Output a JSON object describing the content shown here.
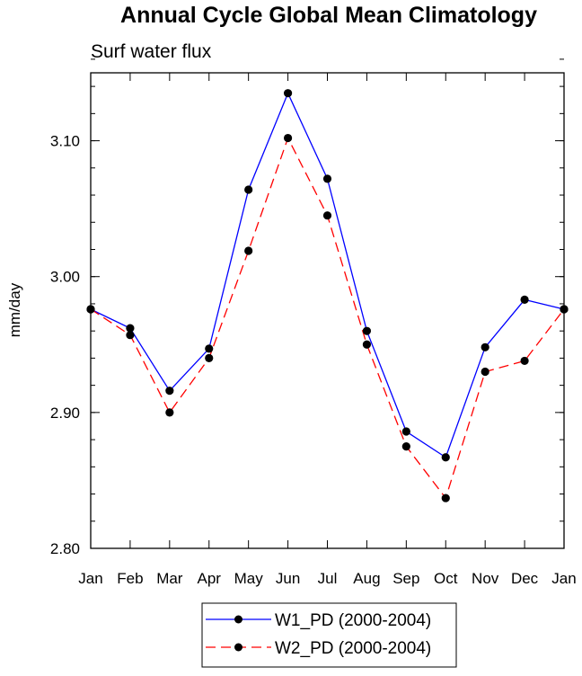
{
  "chart_data": {
    "type": "line",
    "title": "Annual Cycle Global Mean Climatology",
    "subtitle": "Surf water flux",
    "xlabel": "",
    "ylabel": "mm/day",
    "categories": [
      "Jan",
      "Feb",
      "Mar",
      "Apr",
      "May",
      "Jun",
      "Jul",
      "Aug",
      "Sep",
      "Oct",
      "Nov",
      "Dec",
      "Jan"
    ],
    "ylim": [
      2.8,
      3.15
    ],
    "yticks": [
      2.8,
      2.9,
      3.0,
      3.1
    ],
    "ytick_labels": [
      "2.80",
      "2.90",
      "3.00",
      "3.10"
    ],
    "series": [
      {
        "name": "W1_PD (2000-2004)",
        "color": "#0000ff",
        "dash": "solid",
        "values": [
          2.976,
          2.962,
          2.916,
          2.947,
          3.064,
          3.135,
          3.072,
          2.96,
          2.886,
          2.867,
          2.948,
          2.983,
          2.976
        ]
      },
      {
        "name": "W2_PD (2000-2004)",
        "color": "#ff0000",
        "dash": "dashed",
        "values": [
          2.976,
          2.957,
          2.9,
          2.94,
          3.019,
          3.102,
          3.045,
          2.95,
          2.875,
          2.837,
          2.93,
          2.938,
          2.976
        ]
      }
    ],
    "legend_position": "bottom-center",
    "grid": false
  }
}
